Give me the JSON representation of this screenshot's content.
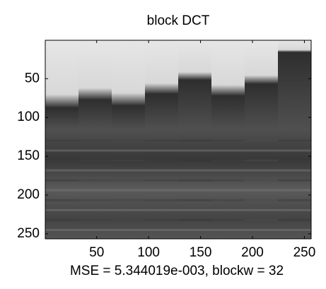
{
  "chart_data": {
    "type": "image",
    "title": "block DCT",
    "xlabel": "MSE = 5.344019e-003, blockw = 32",
    "xlim": [
      0.5,
      256.5
    ],
    "ylim": [
      0.5,
      256.5
    ],
    "y_direction": "reverse",
    "xticks": [
      50,
      100,
      150,
      200,
      250
    ],
    "yticks": [
      50,
      100,
      150,
      200,
      250
    ],
    "colormap": "gray"
  }
}
